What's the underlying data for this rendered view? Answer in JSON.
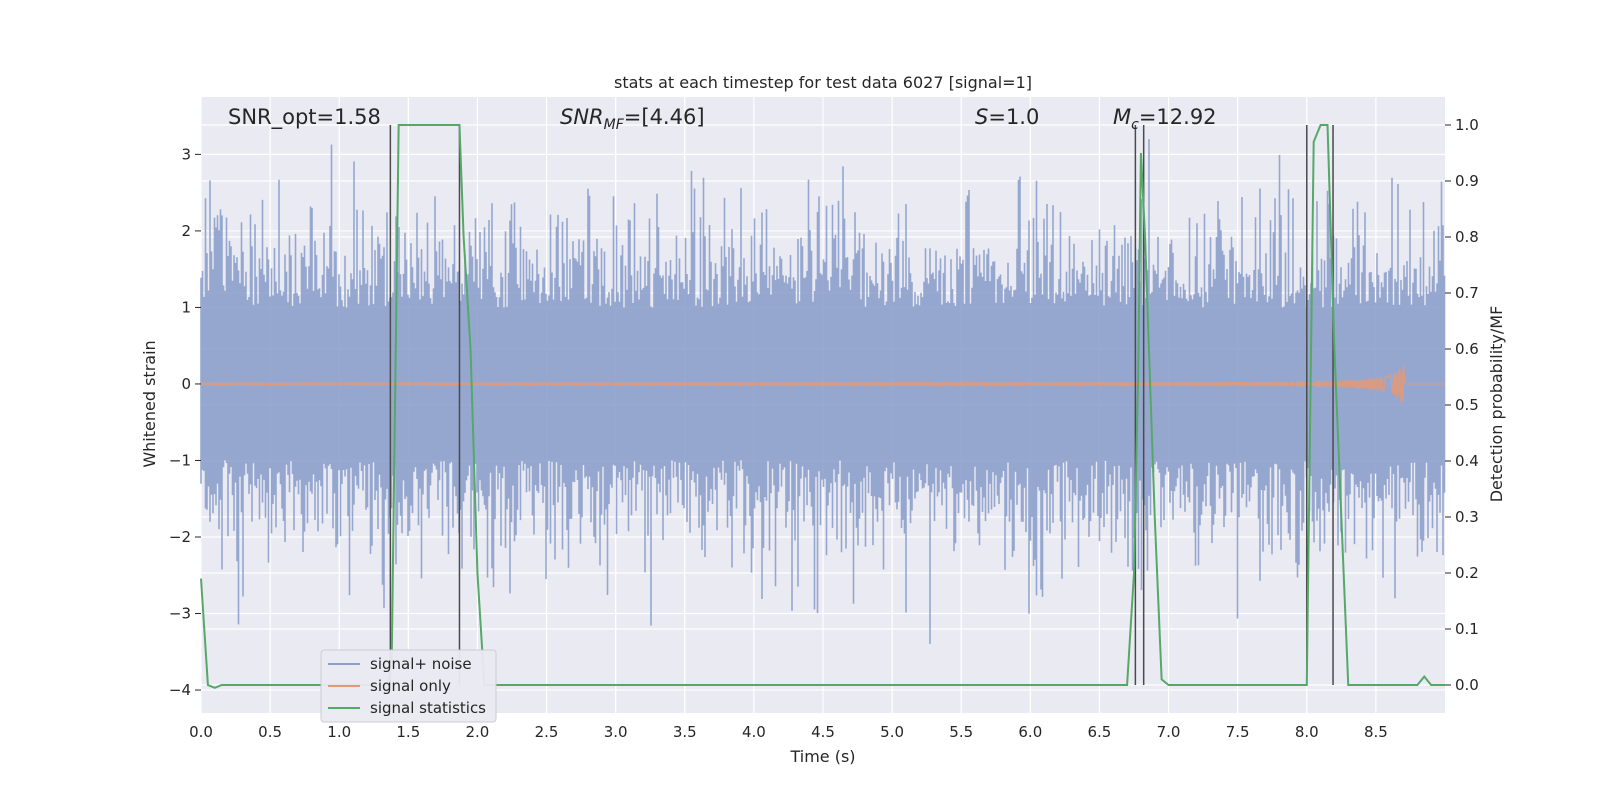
{
  "chart_data": {
    "type": "line",
    "title": "stats at each timestep for test data 6027 [signal=1]",
    "xlabel": "Time (s)",
    "ylabel_left": "Whitened strain",
    "ylabel_right": "Detection probability/MF",
    "xlim": [
      0.0,
      9.0
    ],
    "ylim_left": [
      -4.3,
      3.75
    ],
    "ylim_right": [
      -0.05,
      1.05
    ],
    "x_ticks": [
      "0.0",
      "0.5",
      "1.0",
      "1.5",
      "2.0",
      "2.5",
      "3.0",
      "3.5",
      "4.0",
      "4.5",
      "5.0",
      "5.5",
      "6.0",
      "6.5",
      "7.0",
      "7.5",
      "8.0",
      "8.5"
    ],
    "y_ticks_left": [
      "3",
      "2",
      "1",
      "0",
      "−1",
      "−2",
      "−3",
      "−4"
    ],
    "y_ticks_right": [
      "1.0",
      "0.9",
      "0.8",
      "0.7",
      "0.6",
      "0.5",
      "0.4",
      "0.3",
      "0.2",
      "0.1",
      "0.0"
    ],
    "grid": true,
    "legend_placement": "lower-left",
    "annotations": [
      {
        "text": "SNR_opt=1.58"
      },
      {
        "text": "SNR_MF=[4.46]"
      },
      {
        "text": "S=1.0"
      },
      {
        "text": "M_c=12.92"
      }
    ],
    "series": [
      {
        "name": "signal+ noise",
        "color": "#8da0cb",
        "description_axis": "left",
        "amplitude_range": [
          -3.6,
          3.2
        ]
      },
      {
        "name": "signal only",
        "color": "#e09a7a",
        "description_axis": "left",
        "chirp_end_time": 8.7,
        "peak_amplitude": 0.3
      },
      {
        "name": "signal statistics",
        "color": "#55a868",
        "axis": "right",
        "x": [
          0.0,
          0.05,
          0.1,
          0.15,
          1.35,
          1.38,
          1.43,
          1.5,
          1.85,
          1.87,
          1.9,
          1.95,
          2.0,
          2.05,
          6.7,
          6.75,
          6.78,
          6.8,
          6.83,
          6.9,
          6.95,
          7.0,
          8.0,
          8.05,
          8.1,
          8.15,
          8.2,
          8.3,
          8.8,
          8.85,
          8.9,
          9.0
        ],
        "y": [
          0.19,
          0.0,
          -0.005,
          0.0,
          0.0,
          0.05,
          1.0,
          1.0,
          1.0,
          1.0,
          0.8,
          0.6,
          0.2,
          0.0,
          0.0,
          0.2,
          0.55,
          0.95,
          0.8,
          0.3,
          0.01,
          0.0,
          0.0,
          0.97,
          1.0,
          1.0,
          0.6,
          0.0,
          0.0,
          0.015,
          0.0,
          0.0
        ]
      }
    ],
    "vertical_lines_x": [
      1.37,
      1.87,
      6.76,
      6.82,
      8.0,
      8.19
    ]
  }
}
